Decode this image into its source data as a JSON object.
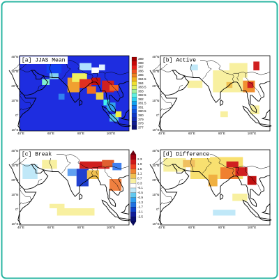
{
  "panels": [
    {
      "title": "[a] JJAS Mean"
    },
    {
      "title": "[b] Active"
    },
    {
      "title": "[c] Break"
    },
    {
      "title": "[d] Difference"
    }
  ],
  "latitude_labels": [
    "40°N",
    "30°N",
    "20°N",
    "10°N",
    "0°",
    "10°S"
  ],
  "longitude_labels": [
    "40°E",
    "60°E",
    "80°E",
    "100°E"
  ],
  "colorbars": [
    {
      "labels": [
        "389",
        "388",
        "387",
        "386",
        "385",
        "384.5",
        "384",
        "383.5",
        "383",
        "382.5",
        "382",
        "381.5",
        "381",
        "380.5",
        "380",
        "379",
        "378",
        "377"
      ]
    },
    {
      "labels": [
        "2.3",
        "1.9",
        "1.5",
        "1.1",
        "0.7",
        "0.3",
        "-0.1",
        "-0.5",
        "-0.9",
        "-1.3",
        "-1.7",
        "-2.1",
        "-2.5"
      ]
    }
  ]
}
